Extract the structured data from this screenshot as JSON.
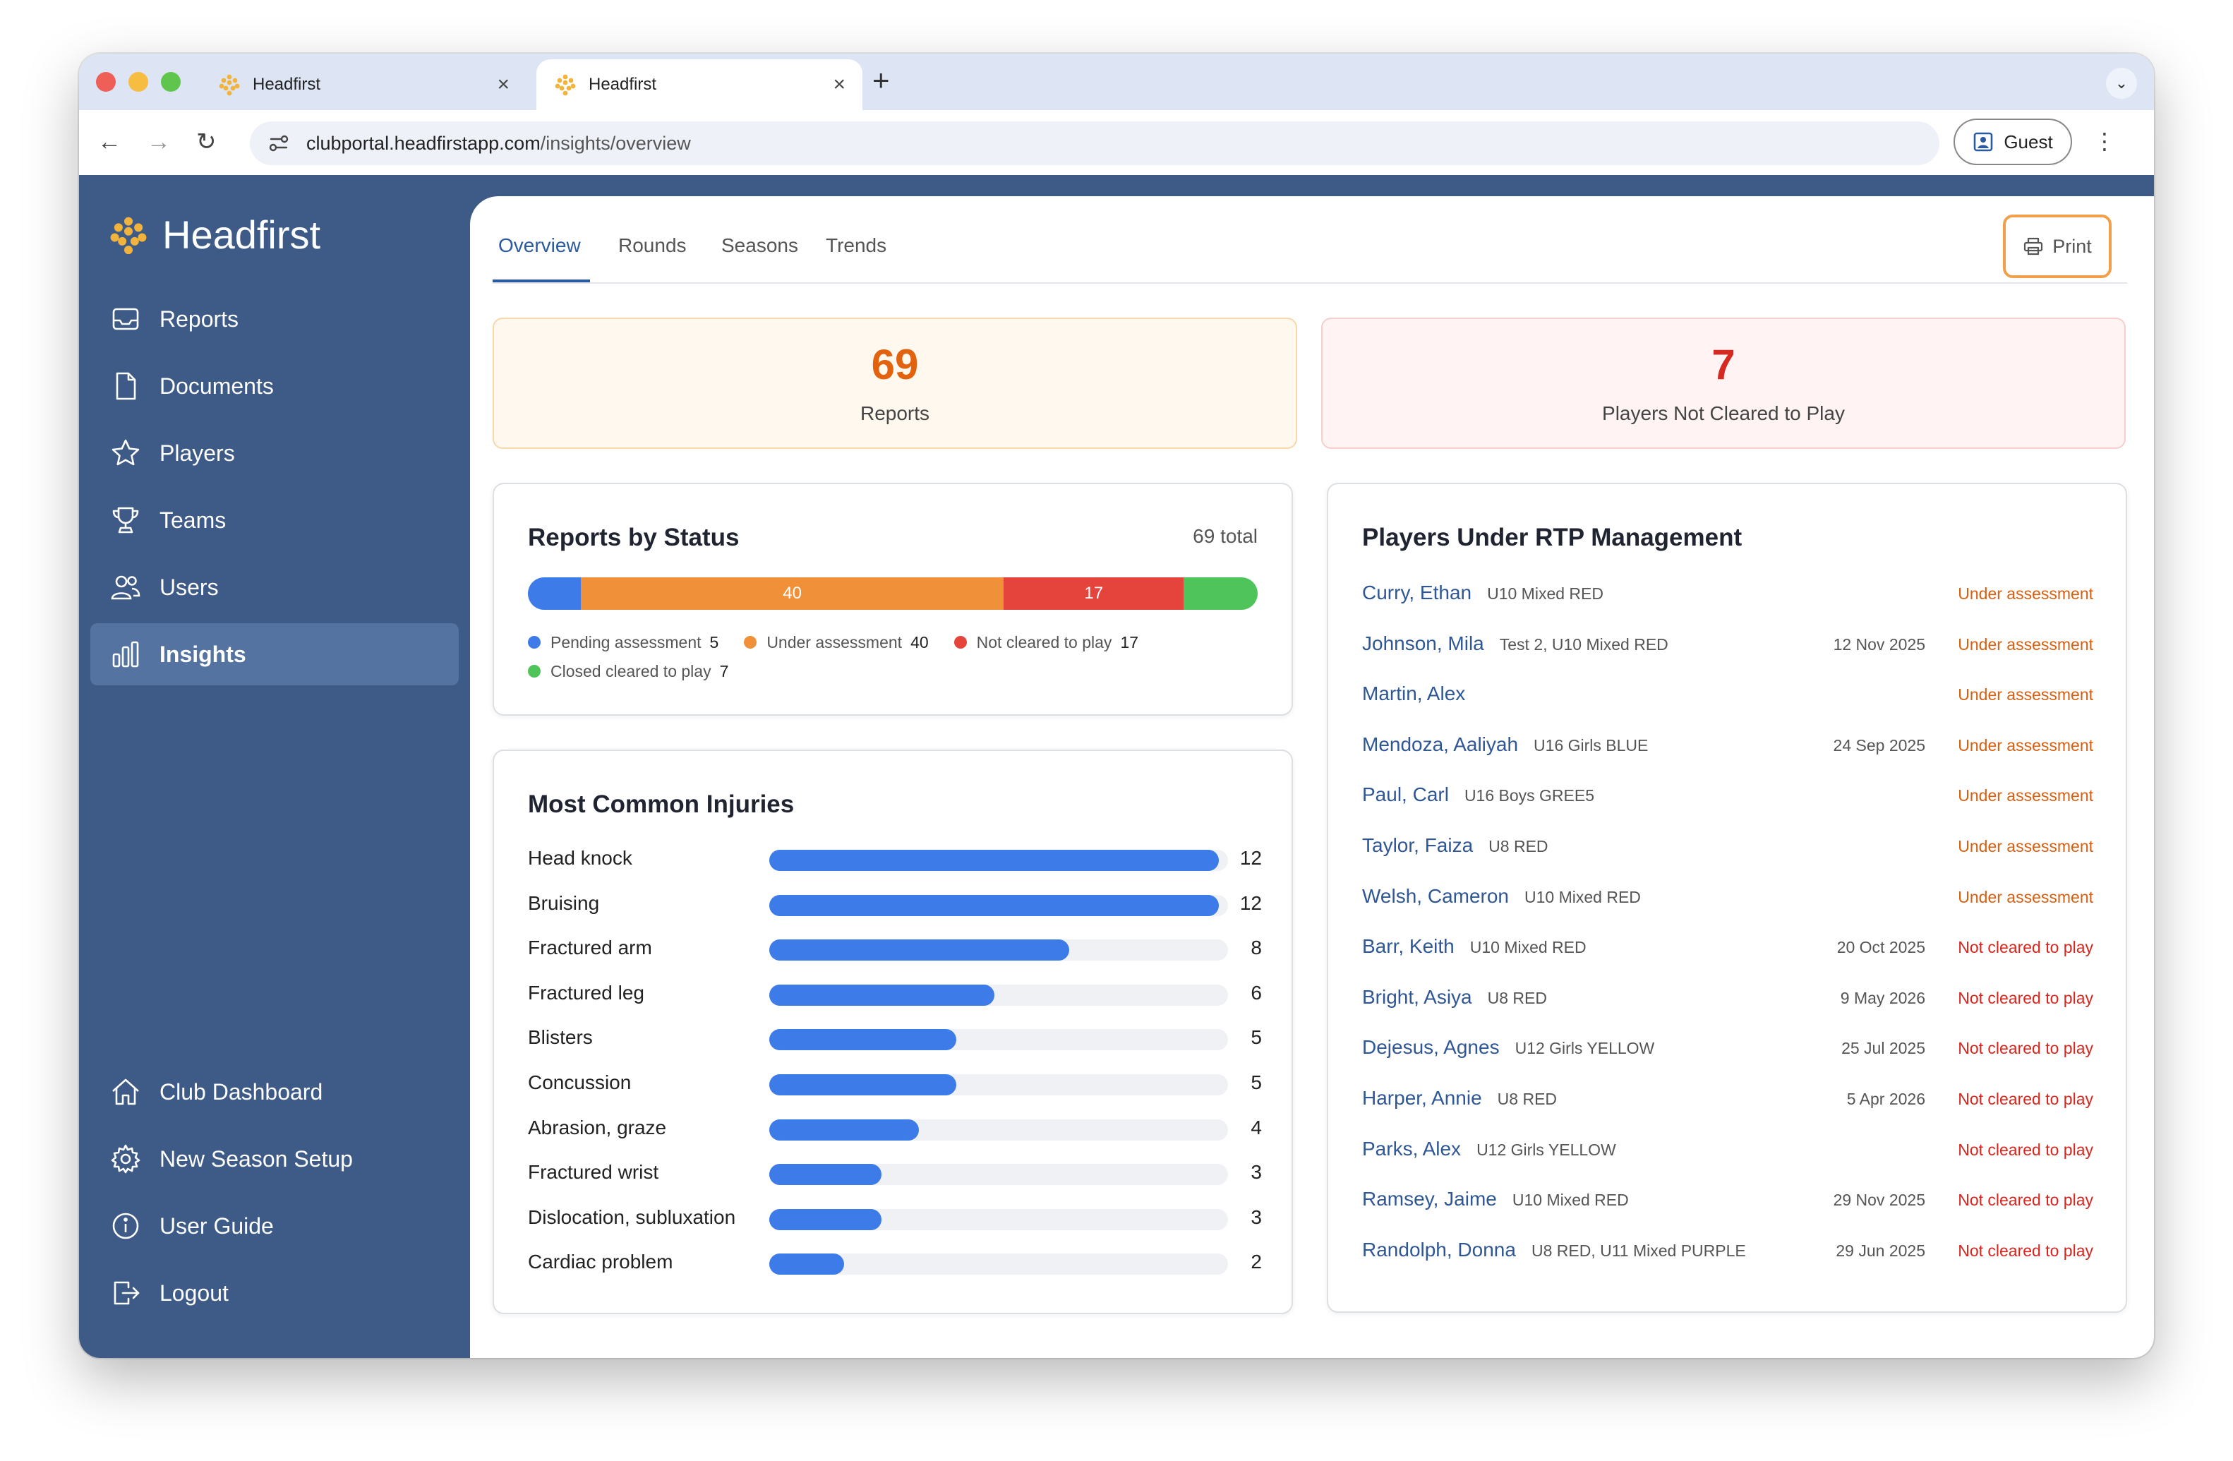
{
  "browser": {
    "tabs": [
      {
        "title": "Headfirst",
        "active": false
      },
      {
        "title": "Headfirst",
        "active": true
      }
    ],
    "url_host": "clubportal.headfirstapp.com",
    "url_path": "/insights/overview",
    "profile_label": "Guest"
  },
  "brand": {
    "name": "Headfirst",
    "accent": "#f2b33d"
  },
  "sidebar": {
    "items": [
      {
        "label": "Reports",
        "icon": "inbox-icon"
      },
      {
        "label": "Documents",
        "icon": "document-icon"
      },
      {
        "label": "Players",
        "icon": "star-icon"
      },
      {
        "label": "Teams",
        "icon": "trophy-icon"
      },
      {
        "label": "Users",
        "icon": "users-icon"
      },
      {
        "label": "Insights",
        "icon": "bar-chart-icon",
        "active": true
      }
    ],
    "bottom_items": [
      {
        "label": "Club Dashboard",
        "icon": "home-icon"
      },
      {
        "label": "New Season Setup",
        "icon": "gear-icon"
      },
      {
        "label": "User Guide",
        "icon": "info-icon"
      },
      {
        "label": "Logout",
        "icon": "logout-icon"
      }
    ]
  },
  "subtabs": [
    "Overview",
    "Rounds",
    "Seasons",
    "Trends"
  ],
  "print_label": "Print",
  "stats": {
    "reports": {
      "value": "69",
      "label": "Reports"
    },
    "not_cleared": {
      "value": "7",
      "label": "Players Not Cleared to Play"
    }
  },
  "reports_by_status": {
    "title": "Reports by Status",
    "total_label": "69 total",
    "segments": [
      {
        "label": "Pending assessment",
        "count": 5,
        "color": "#3c7be8",
        "bar_label": ""
      },
      {
        "label": "Under assessment",
        "count": 40,
        "color": "#f0913a",
        "bar_label": "40"
      },
      {
        "label": "Not cleared to play",
        "count": 17,
        "color": "#e5443d",
        "bar_label": "17"
      },
      {
        "label": "Closed cleared to play",
        "count": 7,
        "color": "#4fc45a",
        "bar_label": ""
      }
    ]
  },
  "injuries": {
    "title": "Most Common Injuries",
    "max": 12,
    "items": [
      {
        "label": "Head knock",
        "value": 12
      },
      {
        "label": "Bruising",
        "value": 12
      },
      {
        "label": "Fractured arm",
        "value": 8
      },
      {
        "label": "Fractured leg",
        "value": 6
      },
      {
        "label": "Blisters",
        "value": 5
      },
      {
        "label": "Concussion",
        "value": 5
      },
      {
        "label": "Abrasion, graze",
        "value": 4
      },
      {
        "label": "Fractured wrist",
        "value": 3
      },
      {
        "label": "Dislocation, subluxation",
        "value": 3
      },
      {
        "label": "Cardiac problem",
        "value": 2
      }
    ]
  },
  "rtp": {
    "title": "Players Under RTP Management",
    "players": [
      {
        "name": "Curry, Ethan",
        "team": "U10 Mixed RED",
        "date": "",
        "status": "Under assessment",
        "kind": "assess"
      },
      {
        "name": "Johnson, Mila",
        "team": "Test 2, U10 Mixed RED",
        "date": "12 Nov 2025",
        "status": "Under assessment",
        "kind": "assess"
      },
      {
        "name": "Martin, Alex",
        "team": "",
        "date": "",
        "status": "Under assessment",
        "kind": "assess"
      },
      {
        "name": "Mendoza, Aaliyah",
        "team": "U16 Girls BLUE",
        "date": "24 Sep 2025",
        "status": "Under assessment",
        "kind": "assess"
      },
      {
        "name": "Paul, Carl",
        "team": "U16 Boys GREE5",
        "date": "",
        "status": "Under assessment",
        "kind": "assess"
      },
      {
        "name": "Taylor, Faiza",
        "team": "U8 RED",
        "date": "",
        "status": "Under assessment",
        "kind": "assess"
      },
      {
        "name": "Welsh, Cameron",
        "team": "U10 Mixed RED",
        "date": "",
        "status": "Under assessment",
        "kind": "assess"
      },
      {
        "name": "Barr, Keith",
        "team": "U10 Mixed RED",
        "date": "20 Oct 2025",
        "status": "Not cleared to play",
        "kind": "notcleared"
      },
      {
        "name": "Bright, Asiya",
        "team": "U8 RED",
        "date": "9 May 2026",
        "status": "Not cleared to play",
        "kind": "notcleared"
      },
      {
        "name": "Dejesus, Agnes",
        "team": "U12 Girls YELLOW",
        "date": "25 Jul 2025",
        "status": "Not cleared to play",
        "kind": "notcleared"
      },
      {
        "name": "Harper, Annie",
        "team": "U8 RED",
        "date": "5 Apr 2026",
        "status": "Not cleared to play",
        "kind": "notcleared"
      },
      {
        "name": "Parks, Alex",
        "team": "U12 Girls YELLOW",
        "date": "",
        "status": "Not cleared to play",
        "kind": "notcleared"
      },
      {
        "name": "Ramsey, Jaime",
        "team": "U10 Mixed RED",
        "date": "29 Nov 2025",
        "status": "Not cleared to play",
        "kind": "notcleared"
      },
      {
        "name": "Randolph, Donna",
        "team": "U8 RED, U11 Mixed PURPLE",
        "date": "29 Jun 2025",
        "status": "Not cleared to play",
        "kind": "notcleared"
      }
    ]
  }
}
